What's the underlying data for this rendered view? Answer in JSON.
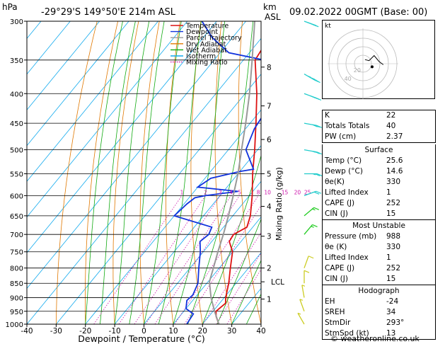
{
  "header": {
    "title": "-29°29'S  149°50'E  214m  ASL",
    "date": "09.02.2022  00GMT  (Base: 00)",
    "hpa_label": "hPa",
    "km_label": "km",
    "asl_label": "ASL"
  },
  "axes": {
    "xlabel": "Dewpoint / Temperature (°C)",
    "ylabel_right": "Mixing Ratio (g/kg)"
  },
  "legend": [
    {
      "name": "Temperature",
      "color": "#dd1111"
    },
    {
      "name": "Dewpoint",
      "color": "#1133dd"
    },
    {
      "name": "Parcel Trajectory",
      "color": "#999999"
    },
    {
      "name": "Dry Adiabat",
      "color": "#e07800"
    },
    {
      "name": "Wet Adiabat",
      "color": "#11aa11"
    },
    {
      "name": "Isotherm",
      "color": "#11aaee"
    },
    {
      "name": "Mixing Ratio",
      "color": "#cc11aa"
    }
  ],
  "chart_data": {
    "type": "line",
    "pressure_levels": [
      300,
      350,
      400,
      450,
      500,
      550,
      600,
      650,
      700,
      750,
      800,
      850,
      900,
      950,
      1000
    ],
    "temperature_ticks": [
      -40,
      -30,
      -20,
      -10,
      0,
      10,
      20,
      30,
      40
    ],
    "xlim": [
      -40,
      40
    ],
    "ylim": [
      1000,
      300
    ],
    "km_ticks": [
      {
        "label": "8",
        "p": 360
      },
      {
        "label": "7",
        "p": 420
      },
      {
        "label": "6",
        "p": 480
      },
      {
        "label": "5",
        "p": 550
      },
      {
        "label": "4",
        "p": 626
      },
      {
        "label": "3",
        "p": 705
      },
      {
        "label": "2",
        "p": 800
      },
      {
        "label": "1",
        "p": 905
      }
    ],
    "lcl": {
      "label": "LCL",
      "p": 845
    },
    "mixing_ratio_labels": [
      "1",
      "2",
      "3",
      "4",
      "5",
      "8",
      "10",
      "15",
      "20",
      "25"
    ],
    "mixing_ratio_values": [
      1,
      2,
      3,
      4,
      5,
      8,
      10,
      15,
      20,
      25
    ],
    "series": [
      {
        "name": "Temperature",
        "color": "#dd1111",
        "points": [
          [
            1000,
            25.6
          ],
          [
            970,
            22.5
          ],
          [
            950,
            21.0
          ],
          [
            920,
            22.0
          ],
          [
            900,
            20.5
          ],
          [
            850,
            17.5
          ],
          [
            800,
            13.8
          ],
          [
            750,
            10.0
          ],
          [
            720,
            6.0
          ],
          [
            700,
            5.5
          ],
          [
            680,
            8.0
          ],
          [
            650,
            6.0
          ],
          [
            600,
            1.0
          ],
          [
            550,
            -5.0
          ],
          [
            500,
            -11.0
          ],
          [
            450,
            -18.0
          ],
          [
            400,
            -26.0
          ],
          [
            350,
            -36.0
          ],
          [
            330,
            -37.0
          ],
          [
            300,
            -41.0
          ]
        ]
      },
      {
        "name": "Dewpoint",
        "color": "#1133dd",
        "points": [
          [
            1000,
            14.6
          ],
          [
            960,
            14.0
          ],
          [
            940,
            10.0
          ],
          [
            910,
            8.0
          ],
          [
            890,
            8.5
          ],
          [
            850,
            7.0
          ],
          [
            800,
            3.0
          ],
          [
            750,
            -1.0
          ],
          [
            720,
            -4.0
          ],
          [
            700,
            -3.0
          ],
          [
            680,
            -4.0
          ],
          [
            650,
            -20.0
          ],
          [
            620,
            -19.0
          ],
          [
            605,
            -18.0
          ],
          [
            600,
            -15.0
          ],
          [
            590,
            -5.0
          ],
          [
            580,
            -20.0
          ],
          [
            560,
            -18.0
          ],
          [
            545,
            -10.0
          ],
          [
            540,
            -6.0
          ],
          [
            500,
            -14.0
          ],
          [
            460,
            -17.0
          ],
          [
            430,
            -18.0
          ],
          [
            420,
            -19.0
          ],
          [
            380,
            -18.0
          ],
          [
            350,
            -33.0
          ],
          [
            340,
            -47.0
          ],
          [
            320,
            -57.0
          ],
          [
            300,
            -65.0
          ]
        ]
      },
      {
        "name": "Parcel Trajectory",
        "color": "#999999",
        "points": [
          [
            1000,
            25.6
          ],
          [
            950,
            20.5
          ],
          [
            900,
            15.5
          ],
          [
            845,
            10.5
          ],
          [
            800,
            8.0
          ],
          [
            750,
            5.0
          ],
          [
            700,
            2.0
          ],
          [
            650,
            -1.5
          ],
          [
            600,
            -5.5
          ],
          [
            550,
            -10.0
          ],
          [
            500,
            -15.5
          ],
          [
            450,
            -21.5
          ],
          [
            400,
            -28.5
          ],
          [
            350,
            -37.0
          ],
          [
            300,
            -47.0
          ]
        ]
      }
    ]
  },
  "wind_barbs": [
    {
      "p": 300,
      "dir": 290,
      "kt": 85
    },
    {
      "p": 370,
      "dir": 300,
      "kt": 45
    },
    {
      "p": 400,
      "dir": 290,
      "kt": 40
    },
    {
      "p": 450,
      "dir": 280,
      "kt": 30
    },
    {
      "p": 500,
      "dir": 280,
      "kt": 25
    },
    {
      "p": 550,
      "dir": 270,
      "kt": 25
    },
    {
      "p": 600,
      "dir": 250,
      "kt": 20
    },
    {
      "p": 650,
      "dir": 230,
      "kt": 15
    },
    {
      "p": 700,
      "dir": 220,
      "kt": 15
    },
    {
      "p": 800,
      "dir": 200,
      "kt": 10
    },
    {
      "p": 850,
      "dir": 180,
      "kt": 10
    },
    {
      "p": 900,
      "dir": 170,
      "kt": 5
    },
    {
      "p": 950,
      "dir": 160,
      "kt": 5
    },
    {
      "p": 1000,
      "dir": 150,
      "kt": 5
    }
  ],
  "hodograph": {
    "unit_label": "kt",
    "ring_labels": [
      "20",
      "40"
    ],
    "trace": [
      [
        2,
        4
      ],
      [
        6,
        3
      ],
      [
        11,
        8
      ],
      [
        16,
        2
      ],
      [
        20,
        -1
      ]
    ],
    "storm_motion": [
      9,
      -3
    ]
  },
  "indices": [
    {
      "label": "K",
      "value": "22"
    },
    {
      "label": "Totals Totals",
      "value": "40"
    },
    {
      "label": "PW (cm)",
      "value": "2.37"
    }
  ],
  "surface": {
    "title": "Surface",
    "rows": [
      {
        "label": "Temp (°C)",
        "value": "25.6"
      },
      {
        "label": "Dewp (°C)",
        "value": "14.6"
      },
      {
        "label": "θe(K)",
        "value": "330"
      },
      {
        "label": "Lifted Index",
        "value": "1"
      },
      {
        "label": "CAPE (J)",
        "value": "252"
      },
      {
        "label": "CIN (J)",
        "value": "15"
      }
    ]
  },
  "most_unstable": {
    "title": "Most Unstable",
    "rows": [
      {
        "label": "Pressure (mb)",
        "value": "988"
      },
      {
        "label": "θe (K)",
        "value": "330"
      },
      {
        "label": "Lifted Index",
        "value": "1"
      },
      {
        "label": "CAPE (J)",
        "value": "252"
      },
      {
        "label": "CIN (J)",
        "value": "15"
      }
    ]
  },
  "hodograph_table": {
    "title": "Hodograph",
    "rows": [
      {
        "label": "EH",
        "value": "-24"
      },
      {
        "label": "SREH",
        "value": "34"
      },
      {
        "label": "StmDir",
        "value": "293°"
      },
      {
        "label": "StmSpd (kt)",
        "value": "13"
      }
    ]
  },
  "footer": "© weatheronline.co.uk"
}
